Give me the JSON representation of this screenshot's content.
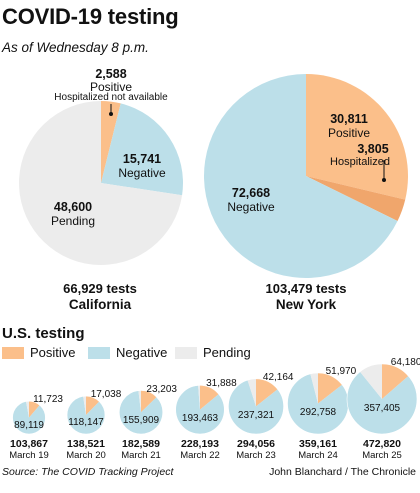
{
  "header": {
    "title": "COVID-19 testing",
    "subtitle": "As of Wednesday 8 p.m."
  },
  "colors": {
    "positive": "#fbbf8a",
    "negative": "#bcdfe9",
    "pending": "#ececec",
    "hospitalized": "#f0a66c",
    "text": "#111111"
  },
  "chart_data": [
    {
      "type": "pie",
      "title": "California",
      "total_label": "66,929 tests",
      "slices": [
        {
          "name": "Positive",
          "value": 2588,
          "value_label": "2,588",
          "label": "Positive",
          "note": "Hospitalized not available"
        },
        {
          "name": "Negative",
          "value": 15741,
          "value_label": "15,741",
          "label": "Negative"
        },
        {
          "name": "Pending",
          "value": 48600,
          "value_label": "48,600",
          "label": "Pending"
        }
      ]
    },
    {
      "type": "pie",
      "title": "New York",
      "total_label": "103,479 tests",
      "slices": [
        {
          "name": "Positive",
          "value": 30811,
          "value_label": "30,811",
          "label": "Positive"
        },
        {
          "name": "Hospitalized",
          "value": 3805,
          "value_label": "3,805",
          "label": "Hospitalized"
        },
        {
          "name": "Negative",
          "value": 72668,
          "value_label": "72,668",
          "label": "Negative"
        }
      ]
    },
    {
      "type": "pie",
      "title": "U.S. testing",
      "legend": [
        "Positive",
        "Negative",
        "Pending"
      ],
      "days": [
        {
          "date": "March 19",
          "total": 103867,
          "total_label": "103,867",
          "positive": 11723,
          "positive_label": "11,723",
          "negative": 89119,
          "negative_label": "89,119"
        },
        {
          "date": "March 20",
          "total": 138521,
          "total_label": "138,521",
          "positive": 17038,
          "positive_label": "17,038",
          "negative": 118147,
          "negative_label": "118,147"
        },
        {
          "date": "March 21",
          "total": 182589,
          "total_label": "182,589",
          "positive": 23203,
          "positive_label": "23,203",
          "negative": 155909,
          "negative_label": "155,909"
        },
        {
          "date": "March 22",
          "total": 228193,
          "total_label": "228,193",
          "positive": 31888,
          "positive_label": "31,888",
          "negative": 193463,
          "negative_label": "193,463"
        },
        {
          "date": "March 23",
          "total": 294056,
          "total_label": "294,056",
          "positive": 42164,
          "positive_label": "42,164",
          "negative": 237321,
          "negative_label": "237,321"
        },
        {
          "date": "March 24",
          "total": 359161,
          "total_label": "359,161",
          "positive": 51970,
          "positive_label": "51,970",
          "negative": 292758,
          "negative_label": "292,758"
        },
        {
          "date": "March 25",
          "total": 472820,
          "total_label": "472,820",
          "positive": 64180,
          "positive_label": "64,180",
          "negative": 357405,
          "negative_label": "357,405"
        }
      ]
    }
  ],
  "footer": {
    "source": "Source: The COVID Tracking Project",
    "credit": "John Blanchard / The Chronicle"
  }
}
